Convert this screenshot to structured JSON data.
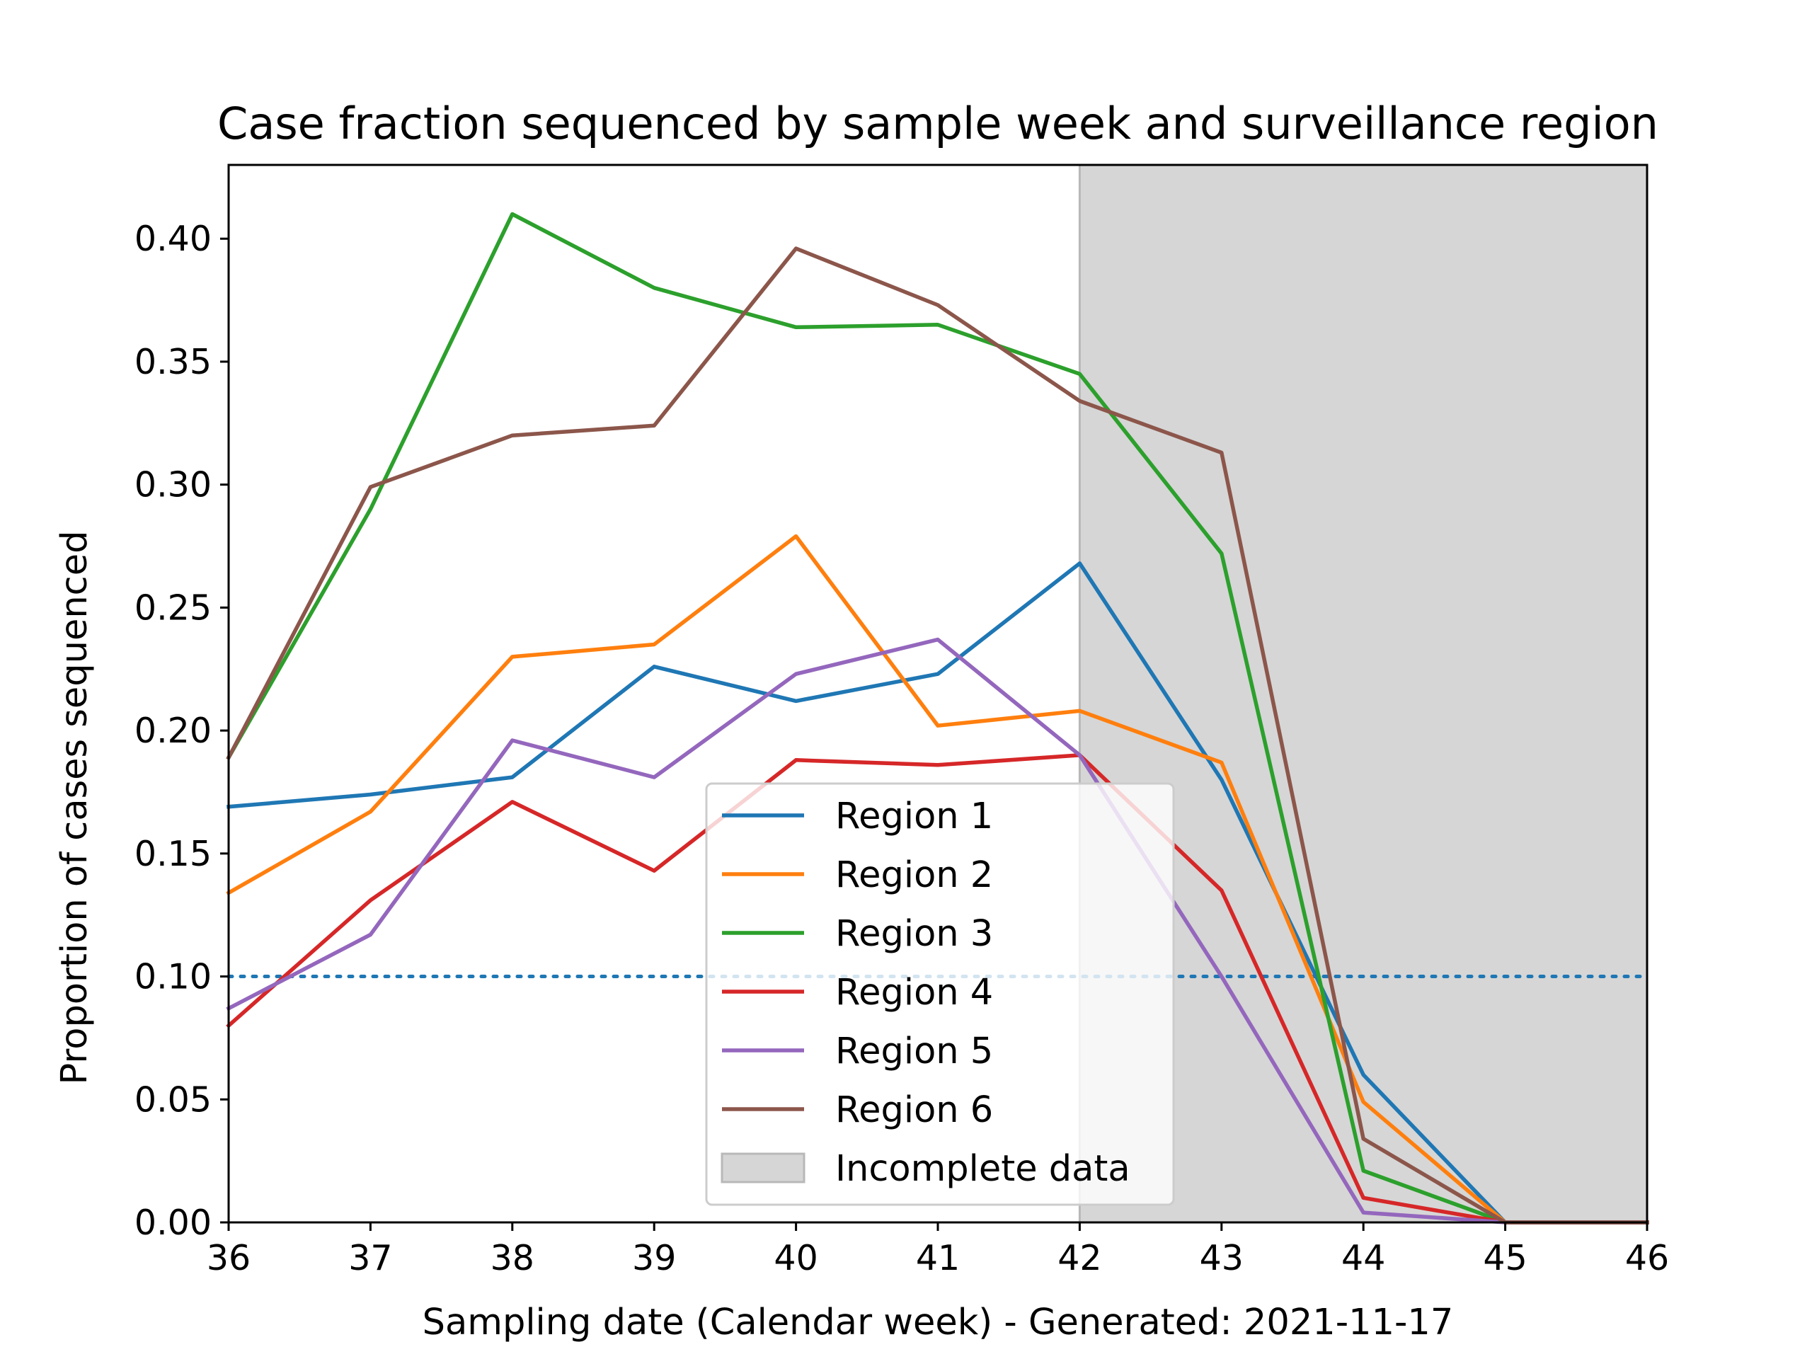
{
  "chart_data": {
    "type": "line",
    "title": "Case fraction sequenced by sample week and surveillance region",
    "xlabel": "Sampling date (Calendar week) - Generated: 2021-11-17",
    "ylabel": "Proportion of cases sequenced",
    "xlim": [
      36,
      46
    ],
    "ylim": [
      0,
      0.43
    ],
    "x_ticks": [
      "36",
      "37",
      "38",
      "39",
      "40",
      "41",
      "42",
      "43",
      "44",
      "45",
      "46"
    ],
    "y_ticks": [
      "0.00",
      "0.05",
      "0.10",
      "0.15",
      "0.20",
      "0.25",
      "0.30",
      "0.35",
      "0.40"
    ],
    "x": [
      36,
      37,
      38,
      39,
      40,
      41,
      42,
      43,
      44,
      45,
      46
    ],
    "series": [
      {
        "name": "Region 1",
        "color": "#1f77b4",
        "values": [
          0.169,
          0.174,
          0.181,
          0.226,
          0.212,
          0.223,
          0.268,
          0.18,
          0.06,
          0.0,
          0.0
        ]
      },
      {
        "name": "Region 2",
        "color": "#ff7f0e",
        "values": [
          0.134,
          0.167,
          0.23,
          0.235,
          0.279,
          0.202,
          0.208,
          0.187,
          0.049,
          0.0,
          0.0
        ]
      },
      {
        "name": "Region 3",
        "color": "#2ca02c",
        "values": [
          0.189,
          0.29,
          0.41,
          0.38,
          0.364,
          0.365,
          0.345,
          0.272,
          0.021,
          0.0,
          0.0
        ]
      },
      {
        "name": "Region 4",
        "color": "#d62728",
        "values": [
          0.08,
          0.131,
          0.171,
          0.143,
          0.188,
          0.186,
          0.19,
          0.135,
          0.01,
          0.0,
          0.0
        ]
      },
      {
        "name": "Region 5",
        "color": "#9467bd",
        "values": [
          0.087,
          0.117,
          0.196,
          0.181,
          0.223,
          0.237,
          0.19,
          0.1,
          0.004,
          0.0,
          0.0
        ]
      },
      {
        "name": "Region 6",
        "color": "#8c564b",
        "values": [
          0.189,
          0.299,
          0.32,
          0.324,
          0.396,
          0.373,
          0.334,
          0.313,
          0.034,
          0.0,
          0.0
        ]
      }
    ],
    "reference_line": {
      "y": 0.1,
      "style": "dotted",
      "color": "#1f77b4"
    },
    "shaded_region": {
      "x_from": 42,
      "x_to": 46,
      "label": "Incomplete data",
      "color": "#d6d6d6"
    },
    "grid": false,
    "legend_position": "lower-center"
  }
}
